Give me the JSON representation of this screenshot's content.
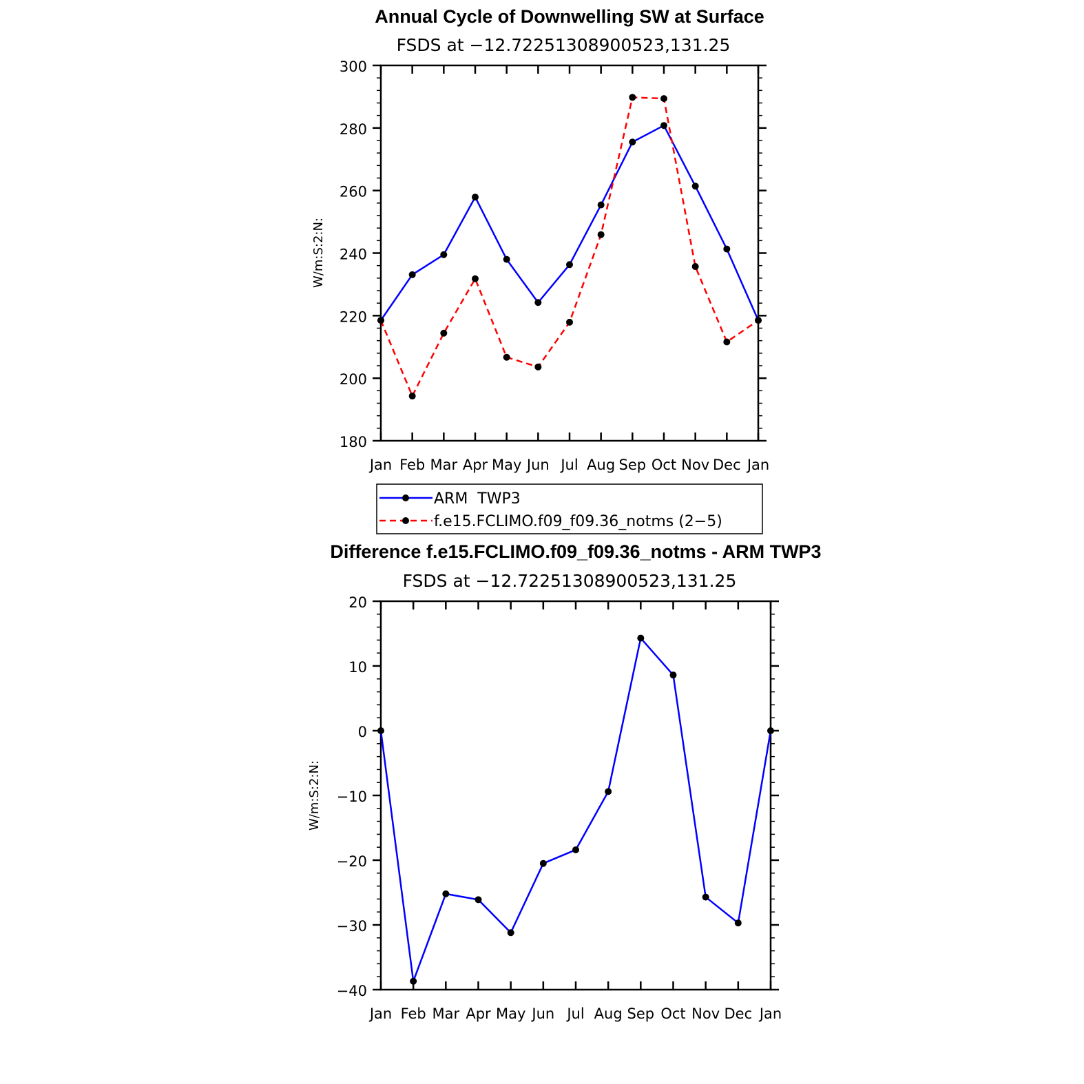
{
  "chart_data": [
    {
      "type": "line",
      "title": "Annual Cycle of Downwelling SW at Surface",
      "subtitle": "FSDS at −12.72251308900523,131.25",
      "ylabel": "W/m:S:2:N:",
      "xlabel": "",
      "categories": [
        "Jan",
        "Feb",
        "Mar",
        "Apr",
        "May",
        "Jun",
        "Jul",
        "Aug",
        "Sep",
        "Oct",
        "Nov",
        "Dec",
        "Jan"
      ],
      "ylim": [
        180,
        300
      ],
      "yticks": [
        "180",
        "200",
        "220",
        "240",
        "260",
        "280",
        "300"
      ],
      "series": [
        {
          "name": "ARM  TWP3",
          "color": "#0000ff",
          "dash": "solid",
          "values": [
            218.5,
            233.1,
            239.5,
            257.9,
            238.0,
            224.2,
            236.3,
            255.4,
            275.5,
            280.8,
            261.4,
            241.3,
            218.5
          ]
        },
        {
          "name": "f.e15.FCLIMO.f09_f09.36_notms (2−5)",
          "color": "#ff0000",
          "dash": "dashed",
          "values": [
            218.5,
            194.3,
            214.4,
            231.8,
            206.7,
            203.6,
            217.9,
            245.9,
            289.8,
            289.4,
            235.7,
            211.6,
            218.5
          ]
        }
      ],
      "legend": "below"
    },
    {
      "type": "line",
      "title": "Difference f.e15.FCLIMO.f09_f09.36_notms - ARM TWP3",
      "subtitle": "FSDS at −12.72251308900523,131.25",
      "ylabel": "W/m:S:2:N:",
      "xlabel": "",
      "categories": [
        "Jan",
        "Feb",
        "Mar",
        "Apr",
        "May",
        "Jun",
        "Jul",
        "Aug",
        "Sep",
        "Oct",
        "Nov",
        "Dec",
        "Jan"
      ],
      "ylim": [
        -40,
        20
      ],
      "yticks": [
        "−40",
        "−30",
        "−20",
        "−10",
        "0",
        "10",
        "20"
      ],
      "series": [
        {
          "color": "#0000ff",
          "dash": "solid",
          "values": [
            0.0,
            -38.7,
            -25.2,
            -26.1,
            -31.2,
            -20.5,
            -18.4,
            -9.4,
            14.3,
            8.6,
            -25.7,
            -29.7,
            0.0
          ]
        }
      ]
    }
  ]
}
